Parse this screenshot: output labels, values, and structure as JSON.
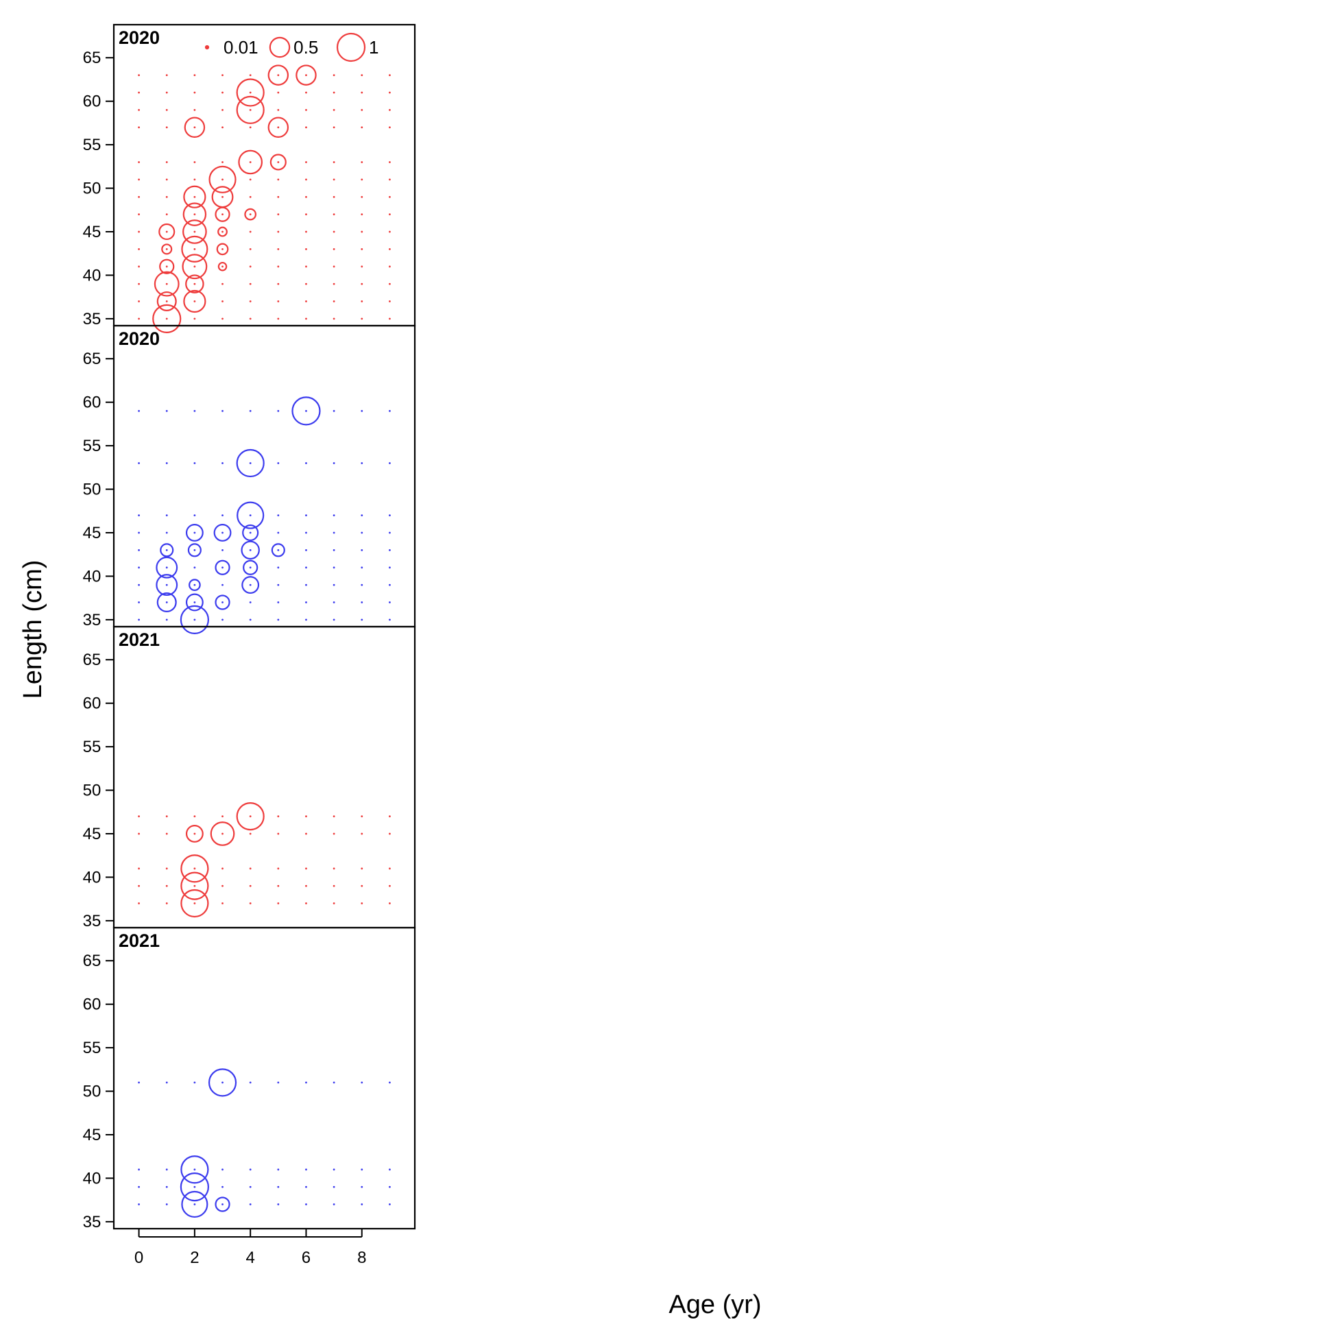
{
  "chart_data": {
    "type": "scatter",
    "xlabel": "Age (yr)",
    "ylabel": "Length (cm)",
    "xlim": [
      -0.9,
      9.9
    ],
    "ylim": [
      34.2,
      68.8
    ],
    "x_ticks": [
      "0",
      "2",
      "4",
      "6",
      "8"
    ],
    "y_ticks": [
      "35",
      "40",
      "45",
      "50",
      "55",
      "60",
      "65"
    ],
    "ages": [
      0,
      1,
      2,
      3,
      4,
      5,
      6,
      7,
      8,
      9
    ],
    "legend": {
      "placement": "top",
      "entries": [
        {
          "label": "0.01",
          "value": 0.01
        },
        {
          "label": "0.5",
          "value": 0.5
        },
        {
          "label": "1",
          "value": 1
        }
      ]
    },
    "colors": {
      "red": "#ee3b3b",
      "blue": "#3b3bee"
    },
    "panels": [
      {
        "title": "2020",
        "color": "red",
        "lengths": [
          35,
          37,
          39,
          41,
          43,
          45,
          47,
          49,
          51,
          53,
          57,
          59,
          61,
          63
        ],
        "points": [
          [
            1,
            35,
            1.0
          ],
          [
            1,
            37,
            0.45
          ],
          [
            1,
            39,
            0.75
          ],
          [
            1,
            41,
            0.25
          ],
          [
            1,
            43,
            0.12
          ],
          [
            1,
            45,
            0.3
          ],
          [
            2,
            37,
            0.6
          ],
          [
            2,
            39,
            0.4
          ],
          [
            2,
            41,
            0.75
          ],
          [
            2,
            43,
            0.85
          ],
          [
            2,
            45,
            0.7
          ],
          [
            2,
            47,
            0.65
          ],
          [
            2,
            49,
            0.6
          ],
          [
            2,
            57,
            0.5
          ],
          [
            3,
            41,
            0.08
          ],
          [
            3,
            43,
            0.15
          ],
          [
            3,
            45,
            0.1
          ],
          [
            3,
            47,
            0.25
          ],
          [
            3,
            49,
            0.55
          ],
          [
            3,
            51,
            0.9
          ],
          [
            4,
            47,
            0.15
          ],
          [
            4,
            53,
            0.7
          ],
          [
            4,
            59,
            0.95
          ],
          [
            4,
            61,
            0.95
          ],
          [
            5,
            53,
            0.3
          ],
          [
            5,
            57,
            0.5
          ],
          [
            5,
            63,
            0.5
          ],
          [
            6,
            63,
            0.5
          ]
        ]
      },
      {
        "title": "2020",
        "color": "blue",
        "lengths": [
          35,
          37,
          39,
          41,
          43,
          45,
          47,
          53,
          59
        ],
        "points": [
          [
            1,
            37,
            0.45
          ],
          [
            1,
            39,
            0.55
          ],
          [
            1,
            41,
            0.55
          ],
          [
            1,
            43,
            0.2
          ],
          [
            2,
            35,
            1.0
          ],
          [
            2,
            37,
            0.35
          ],
          [
            2,
            39,
            0.15
          ],
          [
            2,
            43,
            0.2
          ],
          [
            2,
            45,
            0.35
          ],
          [
            3,
            37,
            0.25
          ],
          [
            3,
            41,
            0.25
          ],
          [
            3,
            45,
            0.35
          ],
          [
            4,
            39,
            0.35
          ],
          [
            4,
            41,
            0.25
          ],
          [
            4,
            43,
            0.4
          ],
          [
            4,
            45,
            0.3
          ],
          [
            4,
            47,
            0.9
          ],
          [
            5,
            43,
            0.2
          ],
          [
            4,
            53,
            0.95
          ],
          [
            6,
            59,
            1.0
          ]
        ]
      },
      {
        "title": "2021",
        "color": "red",
        "lengths": [
          37,
          39,
          41,
          45,
          47
        ],
        "points": [
          [
            2,
            37,
            0.95
          ],
          [
            2,
            39,
            0.95
          ],
          [
            2,
            41,
            0.95
          ],
          [
            2,
            45,
            0.35
          ],
          [
            3,
            45,
            0.7
          ],
          [
            4,
            47,
            0.95
          ]
        ]
      },
      {
        "title": "2021",
        "color": "blue",
        "lengths": [
          37,
          39,
          41,
          51
        ],
        "points": [
          [
            2,
            37,
            0.85
          ],
          [
            2,
            39,
            1.0
          ],
          [
            2,
            41,
            0.95
          ],
          [
            3,
            37,
            0.25
          ],
          [
            3,
            51,
            0.95
          ]
        ]
      }
    ]
  }
}
